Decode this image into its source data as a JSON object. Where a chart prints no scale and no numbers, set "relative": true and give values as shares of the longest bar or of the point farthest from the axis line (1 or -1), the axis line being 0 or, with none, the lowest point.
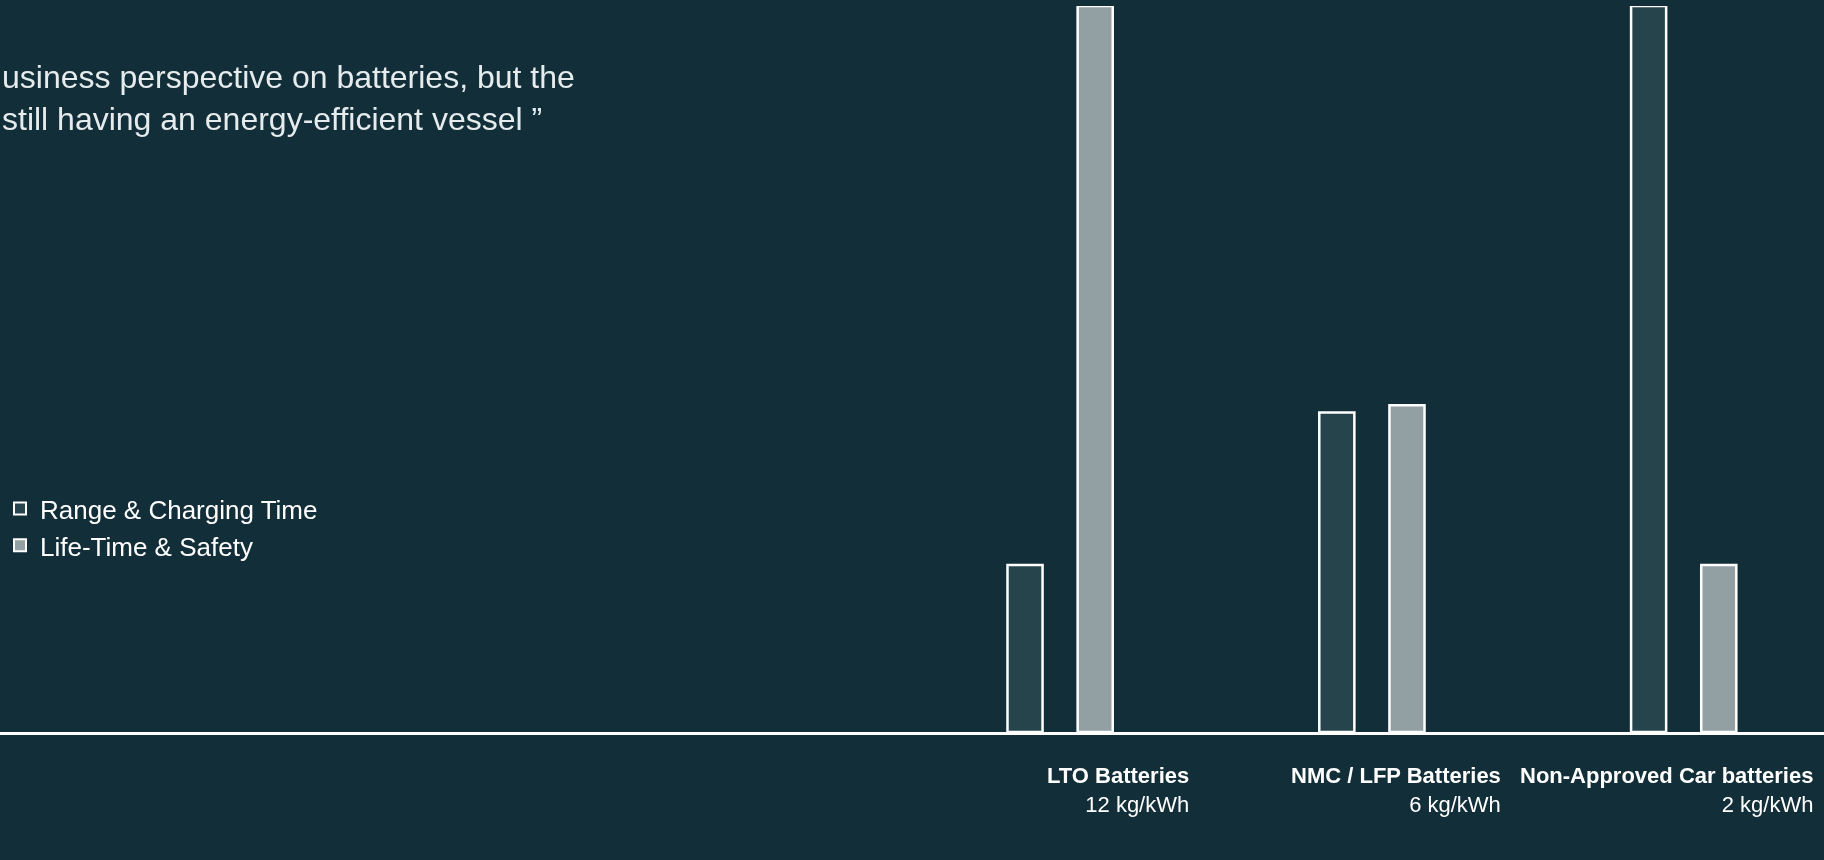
{
  "chart_data": {
    "type": "bar",
    "relative": true,
    "categories": [
      "LTO Batteries\n12 kg/kWh",
      "NMC / LFP Batteries\n6 kg/kWh",
      "Non-Approved Car batteries\n2 kg/kWh"
    ],
    "series": [
      {
        "name": "Range & Charging Time",
        "color": "#26444c",
        "values": [
          0.23,
          0.44,
          1
        ]
      },
      {
        "name": "Life-Time & Safety",
        "color": "#929fa3",
        "values": [
          1,
          0.45,
          0.23
        ]
      }
    ],
    "annotations": [
      "usiness perspective on batteries, but the\nstill having an energy-efficient vessel ”"
    ],
    "legend": "left",
    "grid": false
  }
}
